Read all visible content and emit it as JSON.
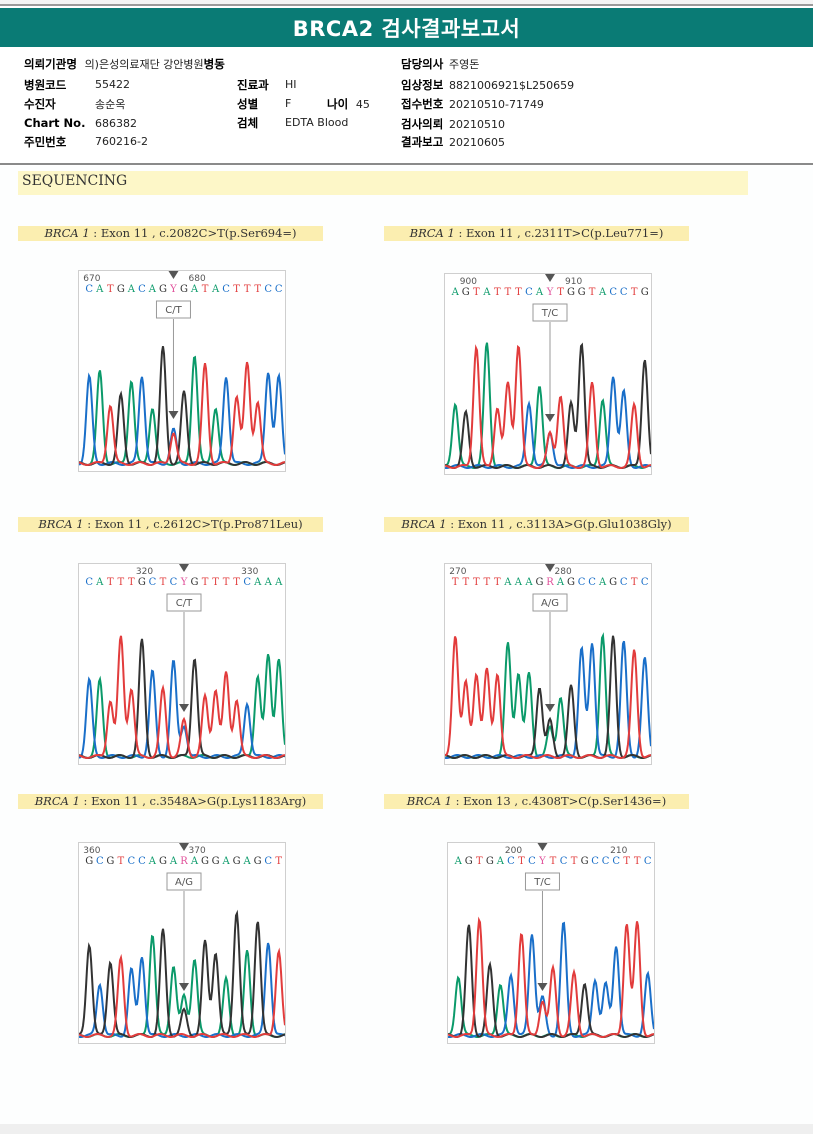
{
  "report": {
    "title": "BRCA2 검사결과보고서",
    "accent_color": "#0a7b75"
  },
  "patient_info": {
    "left": [
      {
        "label": "의뢰기관명",
        "value": "의)은성의료재단 강안병원"
      },
      {
        "label": "병원코드",
        "value": "55422"
      },
      {
        "label": "수진자",
        "value": "송순옥"
      },
      {
        "label": "Chart No.",
        "value": "686382"
      },
      {
        "label": "주민번호",
        "value": "760216-2"
      }
    ],
    "middle": [
      {
        "label": "병동",
        "value": ""
      },
      {
        "label": "진료과",
        "value": "HI"
      },
      {
        "label": "성별",
        "value": "F"
      },
      {
        "label": "검체",
        "value": "EDTA Blood"
      }
    ],
    "age": {
      "label": "나이",
      "value": "45"
    },
    "right": [
      {
        "label": "담당의사",
        "value": "주영돈"
      },
      {
        "label": "임상정보",
        "value": "8821006921$L250659"
      },
      {
        "label": "접수번호",
        "value": "20210510-71749"
      },
      {
        "label": "검사의뢰",
        "value": "20210510"
      },
      {
        "label": "결과보고",
        "value": "20210605"
      }
    ]
  },
  "section": {
    "title": "SEQUENCING"
  },
  "panels": [
    {
      "gene": "BRCA 1",
      "detail": " : Exon 11 , c.2082C>T(p.Ser694=)",
      "pos_labels": [
        {
          "text": "670",
          "idx": 0
        },
        {
          "text": "680",
          "idx": 10
        }
      ],
      "bases": "CATGACAGYGATACTTTCC",
      "call": "C/T",
      "var_idx": 8
    },
    {
      "gene": "BRCA 1",
      "detail": " : Exon 11 , c.2311T>C(p.Leu771=)",
      "pos_labels": [
        {
          "text": "900",
          "idx": 1
        },
        {
          "text": "910",
          "idx": 11
        }
      ],
      "bases": "AGTATTTCAYTGGTACCTG",
      "call": "T/C",
      "var_idx": 9
    },
    {
      "gene": "BRCA 1",
      "detail": " : Exon 11 , c.2612C>T(p.Pro871Leu)",
      "pos_labels": [
        {
          "text": "320",
          "idx": 5
        },
        {
          "text": "330",
          "idx": 15
        }
      ],
      "bases": "CATTTGCTCYGTTTTCAAA",
      "call": "C/T",
      "var_idx": 9
    },
    {
      "gene": "BRCA 1",
      "detail": " : Exon 11 , c.3113A>G(p.Glu1038Gly)",
      "pos_labels": [
        {
          "text": "270",
          "idx": 0
        },
        {
          "text": "280",
          "idx": 10
        }
      ],
      "bases": "TTTTTAAAGRAGCCAGCTC",
      "call": "A/G",
      "var_idx": 9
    },
    {
      "gene": "BRCA 1",
      "detail": " : Exon 11 , c.3548A>G(p.Lys1183Arg)",
      "pos_labels": [
        {
          "text": "360",
          "idx": 0
        },
        {
          "text": "370",
          "idx": 10
        }
      ],
      "bases": "GCGTCCAGARAGGAGAGCT",
      "call": "A/G",
      "var_idx": 9
    },
    {
      "gene": "BRCA 1",
      "detail": " : Exon 13 , c.4308T>C(p.Ser1436=)",
      "pos_labels": [
        {
          "text": "200",
          "idx": 5
        },
        {
          "text": "210",
          "idx": 15
        }
      ],
      "bases": "AGTGACTCYTCTGCCCTTC",
      "call": "T/C",
      "var_idx": 8
    }
  ],
  "base_colors": {
    "A": "#0b9a6a",
    "C": "#1a6fc9",
    "G": "#333333",
    "T": "#e23c3c",
    "Y": "#e0509a",
    "R": "#e0509a"
  }
}
